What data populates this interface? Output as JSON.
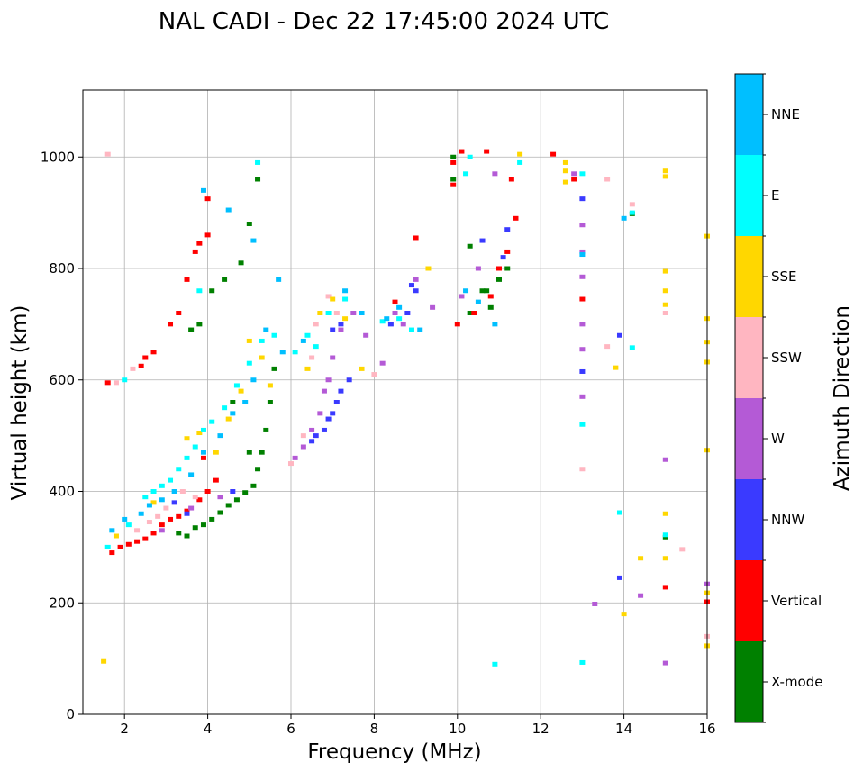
{
  "chart_data": {
    "type": "scatter",
    "title": "NAL CADI - Dec 22 17:45:00 2024 UTC",
    "xlabel": "Frequency (MHz)",
    "ylabel": "Virtual height (km)",
    "xlim": [
      1,
      16
    ],
    "ylim": [
      0,
      1120
    ],
    "xticks": [
      2,
      4,
      6,
      8,
      10,
      12,
      14,
      16
    ],
    "yticks": [
      0,
      200,
      400,
      600,
      800,
      1000
    ],
    "grid": true,
    "colorbar": {
      "label": "Azimuth Direction",
      "categories": [
        {
          "name": "X-mode",
          "color": "#008000"
        },
        {
          "name": "Vertical",
          "color": "#ff0000"
        },
        {
          "name": "NNW",
          "color": "#3a3aff"
        },
        {
          "name": "W",
          "color": "#b45ad6"
        },
        {
          "name": "SSW",
          "color": "#ffb6c1"
        },
        {
          "name": "SSE",
          "color": "#ffd700"
        },
        {
          "name": "E",
          "color": "#00ffff"
        },
        {
          "name": "NNE",
          "color": "#00bfff"
        }
      ]
    },
    "series": [
      {
        "name": "X-mode",
        "points": [
          [
            3.3,
            325
          ],
          [
            3.5,
            320
          ],
          [
            3.7,
            335
          ],
          [
            3.9,
            340
          ],
          [
            4.1,
            350
          ],
          [
            4.3,
            362
          ],
          [
            4.5,
            375
          ],
          [
            4.7,
            385
          ],
          [
            4.9,
            398
          ],
          [
            5.1,
            410
          ],
          [
            5.2,
            440
          ],
          [
            5.3,
            470
          ],
          [
            5.4,
            510
          ],
          [
            5.5,
            560
          ],
          [
            5.6,
            620
          ],
          [
            3.6,
            690
          ],
          [
            3.8,
            700
          ],
          [
            4.1,
            760
          ],
          [
            4.4,
            780
          ],
          [
            4.8,
            810
          ],
          [
            5.0,
            880
          ],
          [
            5.2,
            960
          ],
          [
            10.3,
            840
          ],
          [
            10.6,
            760
          ],
          [
            10.8,
            730
          ],
          [
            11.0,
            780
          ],
          [
            11.2,
            800
          ],
          [
            10.3,
            720
          ],
          [
            9.9,
            1000
          ],
          [
            9.9,
            960
          ],
          [
            14.2,
            898
          ],
          [
            15.0,
            318
          ],
          [
            4.6,
            560
          ],
          [
            5.0,
            470
          ],
          [
            10.7,
            760
          ]
        ]
      },
      {
        "name": "Vertical",
        "points": [
          [
            1.7,
            290
          ],
          [
            1.9,
            300
          ],
          [
            2.1,
            305
          ],
          [
            2.3,
            310
          ],
          [
            2.5,
            315
          ],
          [
            2.7,
            325
          ],
          [
            2.9,
            340
          ],
          [
            3.1,
            350
          ],
          [
            3.3,
            355
          ],
          [
            3.5,
            365
          ],
          [
            3.8,
            385
          ],
          [
            4.0,
            400
          ],
          [
            2.4,
            625
          ],
          [
            2.5,
            640
          ],
          [
            2.7,
            650
          ],
          [
            3.1,
            700
          ],
          [
            3.3,
            720
          ],
          [
            3.5,
            780
          ],
          [
            3.7,
            830
          ],
          [
            3.8,
            845
          ],
          [
            4.0,
            860
          ],
          [
            4.0,
            925
          ],
          [
            9.9,
            990
          ],
          [
            9.9,
            950
          ],
          [
            10.1,
            1010
          ],
          [
            10.7,
            1010
          ],
          [
            10.0,
            700
          ],
          [
            10.4,
            720
          ],
          [
            10.8,
            750
          ],
          [
            11.0,
            800
          ],
          [
            11.2,
            830
          ],
          [
            11.4,
            890
          ],
          [
            11.3,
            960
          ],
          [
            12.3,
            1005
          ],
          [
            12.8,
            960
          ],
          [
            13.0,
            745
          ],
          [
            15.0,
            228
          ],
          [
            16.0,
            202
          ],
          [
            9.0,
            855
          ],
          [
            8.5,
            740
          ],
          [
            1.6,
            595
          ],
          [
            3.9,
            460
          ],
          [
            4.2,
            420
          ]
        ]
      },
      {
        "name": "NNW",
        "points": [
          [
            6.5,
            490
          ],
          [
            6.6,
            500
          ],
          [
            6.8,
            510
          ],
          [
            7.0,
            540
          ],
          [
            7.1,
            560
          ],
          [
            7.2,
            580
          ],
          [
            7.4,
            600
          ],
          [
            6.9,
            530
          ],
          [
            7.0,
            690
          ],
          [
            7.2,
            700
          ],
          [
            8.4,
            700
          ],
          [
            8.8,
            720
          ],
          [
            9.0,
            760
          ],
          [
            10.6,
            850
          ],
          [
            11.1,
            820
          ],
          [
            11.2,
            870
          ],
          [
            13.0,
            925
          ],
          [
            13.0,
            615
          ],
          [
            13.9,
            680
          ],
          [
            13.9,
            245
          ],
          [
            3.2,
            380
          ],
          [
            3.5,
            360
          ],
          [
            4.6,
            400
          ],
          [
            8.9,
            770
          ]
        ]
      },
      {
        "name": "W",
        "points": [
          [
            6.1,
            460
          ],
          [
            6.3,
            480
          ],
          [
            6.5,
            510
          ],
          [
            6.7,
            540
          ],
          [
            6.8,
            580
          ],
          [
            6.9,
            600
          ],
          [
            7.0,
            640
          ],
          [
            7.2,
            690
          ],
          [
            7.5,
            720
          ],
          [
            7.8,
            680
          ],
          [
            8.2,
            630
          ],
          [
            8.5,
            720
          ],
          [
            8.7,
            700
          ],
          [
            9.0,
            780
          ],
          [
            9.4,
            730
          ],
          [
            10.1,
            750
          ],
          [
            10.5,
            800
          ],
          [
            10.9,
            970
          ],
          [
            12.8,
            970
          ],
          [
            13.0,
            878
          ],
          [
            13.0,
            830
          ],
          [
            13.0,
            785
          ],
          [
            13.0,
            700
          ],
          [
            13.0,
            655
          ],
          [
            13.0,
            570
          ],
          [
            13.3,
            198
          ],
          [
            14.4,
            213
          ],
          [
            15.0,
            92
          ],
          [
            15.0,
            457
          ],
          [
            16.0,
            234
          ],
          [
            2.9,
            330
          ],
          [
            3.6,
            370
          ],
          [
            4.3,
            390
          ]
        ]
      },
      {
        "name": "SSW",
        "points": [
          [
            1.6,
            1005
          ],
          [
            1.8,
            595
          ],
          [
            2.2,
            620
          ],
          [
            2.3,
            330
          ],
          [
            2.6,
            345
          ],
          [
            2.8,
            355
          ],
          [
            3.0,
            370
          ],
          [
            3.4,
            400
          ],
          [
            3.7,
            390
          ],
          [
            6.0,
            450
          ],
          [
            6.3,
            500
          ],
          [
            6.5,
            640
          ],
          [
            6.6,
            700
          ],
          [
            6.9,
            750
          ],
          [
            7.1,
            720
          ],
          [
            8.0,
            610
          ],
          [
            13.0,
            440
          ],
          [
            13.6,
            960
          ],
          [
            13.6,
            660
          ],
          [
            15.0,
            720
          ],
          [
            15.4,
            296
          ],
          [
            16.0,
            140
          ],
          [
            14.2,
            915
          ]
        ]
      },
      {
        "name": "SSE",
        "points": [
          [
            1.5,
            95
          ],
          [
            1.8,
            320
          ],
          [
            2.7,
            380
          ],
          [
            3.5,
            495
          ],
          [
            3.8,
            505
          ],
          [
            4.2,
            470
          ],
          [
            4.5,
            530
          ],
          [
            4.8,
            580
          ],
          [
            5.0,
            670
          ],
          [
            5.3,
            640
          ],
          [
            5.5,
            590
          ],
          [
            6.4,
            620
          ],
          [
            6.7,
            720
          ],
          [
            7.0,
            745
          ],
          [
            7.3,
            710
          ],
          [
            7.7,
            620
          ],
          [
            9.3,
            800
          ],
          [
            11.5,
            1005
          ],
          [
            12.6,
            990
          ],
          [
            12.6,
            975
          ],
          [
            12.6,
            955
          ],
          [
            13.8,
            622
          ],
          [
            14.4,
            280
          ],
          [
            15.0,
            975
          ],
          [
            15.0,
            965
          ],
          [
            15.0,
            795
          ],
          [
            15.0,
            760
          ],
          [
            15.0,
            735
          ],
          [
            15.0,
            360
          ],
          [
            15.0,
            280
          ],
          [
            16.0,
            858
          ],
          [
            16.0,
            710
          ],
          [
            16.0,
            668
          ],
          [
            16.0,
            632
          ],
          [
            16.0,
            474
          ],
          [
            16.0,
            218
          ],
          [
            16.0,
            123
          ],
          [
            14.0,
            180
          ]
        ]
      },
      {
        "name": "E",
        "points": [
          [
            1.6,
            300
          ],
          [
            2.0,
            600
          ],
          [
            2.1,
            340
          ],
          [
            2.5,
            390
          ],
          [
            2.7,
            400
          ],
          [
            2.9,
            410
          ],
          [
            3.1,
            420
          ],
          [
            3.3,
            440
          ],
          [
            3.5,
            460
          ],
          [
            3.7,
            480
          ],
          [
            3.9,
            510
          ],
          [
            4.1,
            525
          ],
          [
            4.4,
            550
          ],
          [
            4.7,
            590
          ],
          [
            5.0,
            630
          ],
          [
            5.3,
            670
          ],
          [
            5.6,
            680
          ],
          [
            6.1,
            650
          ],
          [
            6.4,
            680
          ],
          [
            6.6,
            660
          ],
          [
            6.9,
            720
          ],
          [
            7.3,
            745
          ],
          [
            8.2,
            705
          ],
          [
            8.6,
            710
          ],
          [
            8.9,
            690
          ],
          [
            10.2,
            970
          ],
          [
            10.3,
            1000
          ],
          [
            11.5,
            990
          ],
          [
            13.0,
            970
          ],
          [
            13.0,
            520
          ],
          [
            13.0,
            93
          ],
          [
            13.9,
            362
          ],
          [
            14.2,
            658
          ],
          [
            14.2,
            900
          ],
          [
            15.0,
            322
          ],
          [
            10.9,
            90
          ],
          [
            3.8,
            760
          ],
          [
            5.2,
            990
          ]
        ]
      },
      {
        "name": "NNE",
        "points": [
          [
            1.7,
            330
          ],
          [
            2.0,
            350
          ],
          [
            2.4,
            360
          ],
          [
            2.6,
            375
          ],
          [
            2.9,
            385
          ],
          [
            3.2,
            400
          ],
          [
            3.6,
            430
          ],
          [
            3.9,
            470
          ],
          [
            4.3,
            500
          ],
          [
            4.6,
            540
          ],
          [
            4.9,
            560
          ],
          [
            5.1,
            600
          ],
          [
            5.4,
            690
          ],
          [
            5.8,
            650
          ],
          [
            6.3,
            670
          ],
          [
            7.3,
            760
          ],
          [
            7.7,
            720
          ],
          [
            8.3,
            710
          ],
          [
            8.6,
            730
          ],
          [
            9.1,
            690
          ],
          [
            10.2,
            760
          ],
          [
            10.5,
            740
          ],
          [
            10.9,
            700
          ],
          [
            13.0,
            825
          ],
          [
            14.0,
            890
          ],
          [
            3.9,
            940
          ],
          [
            4.5,
            905
          ],
          [
            5.1,
            850
          ],
          [
            5.7,
            780
          ]
        ]
      }
    ]
  }
}
